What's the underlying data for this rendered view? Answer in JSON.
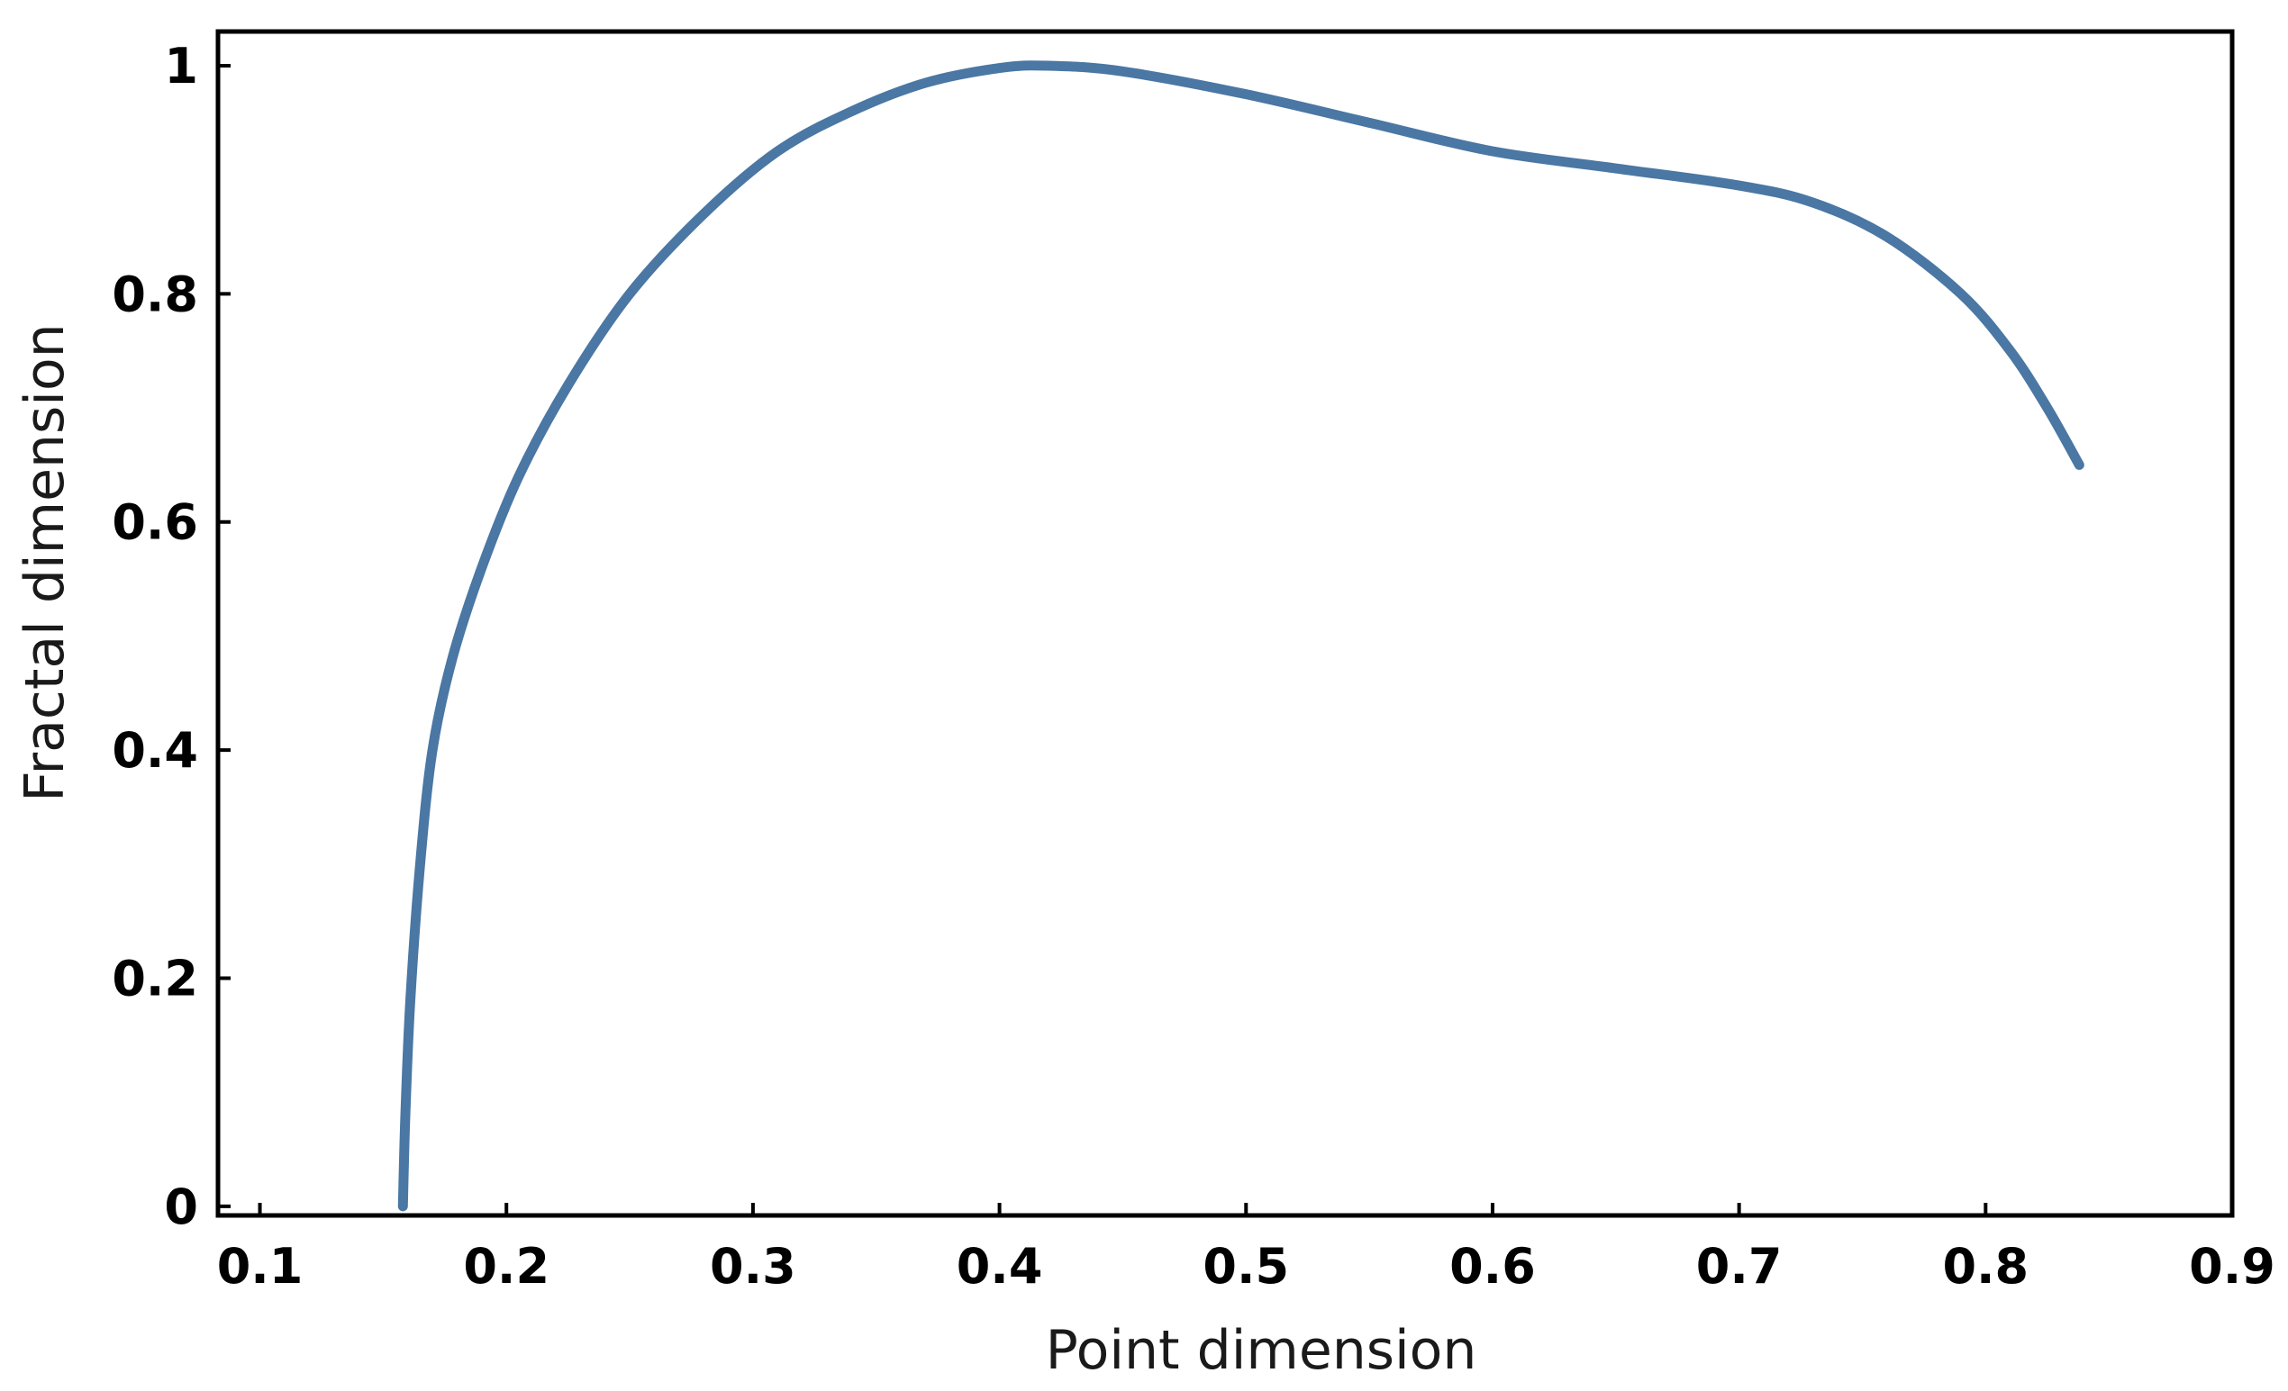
{
  "chart_data": {
    "type": "line",
    "title": "",
    "xlabel": "Point dimension",
    "ylabel": "Fractal dimension",
    "xlim": [
      0.083,
      0.9
    ],
    "ylim": [
      -0.008,
      1.03
    ],
    "x_ticks": [
      0.1,
      0.2,
      0.3,
      0.4,
      0.5,
      0.6,
      0.7,
      0.8,
      0.9
    ],
    "x_tick_labels": [
      "0.1",
      "0.2",
      "0.3",
      "0.4",
      "0.5",
      "0.6",
      "0.7",
      "0.8",
      "0.9"
    ],
    "y_ticks": [
      0,
      0.2,
      0.4,
      0.6,
      0.8,
      1.0
    ],
    "y_tick_labels": [
      "0",
      "0.2",
      "0.4",
      "0.6",
      "0.8",
      "1"
    ],
    "grid": false,
    "line_color": "#4a77a3",
    "series": [
      {
        "x": [
          0.158,
          0.159,
          0.161,
          0.165,
          0.17,
          0.178,
          0.19,
          0.205,
          0.225,
          0.25,
          0.28,
          0.31,
          0.34,
          0.37,
          0.4,
          0.42,
          0.45,
          0.5,
          0.55,
          0.6,
          0.65,
          0.7,
          0.73,
          0.76,
          0.79,
          0.81,
          0.825,
          0.838
        ],
        "y": [
          0.0,
          0.08,
          0.18,
          0.3,
          0.4,
          0.48,
          0.56,
          0.64,
          0.72,
          0.8,
          0.87,
          0.925,
          0.96,
          0.985,
          0.998,
          1.0,
          0.995,
          0.975,
          0.95,
          0.925,
          0.91,
          0.895,
          0.88,
          0.85,
          0.8,
          0.75,
          0.7,
          0.65
        ]
      }
    ]
  }
}
